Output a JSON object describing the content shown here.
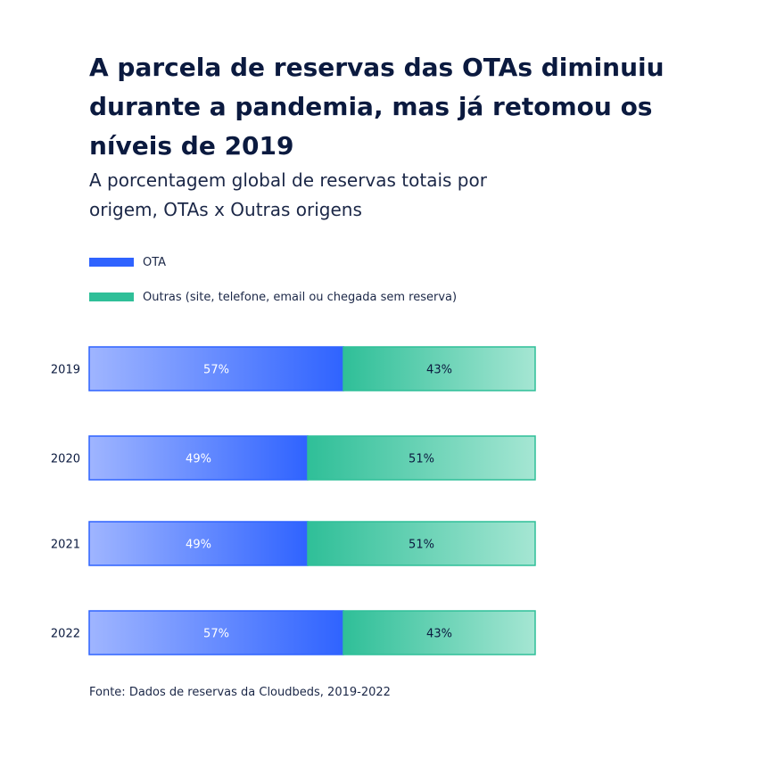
{
  "title": "A parcela de reservas das OTAs diminuiu durante a pandemia, mas já retomou os níveis de 2019",
  "subtitle": "A porcentagem global de reservas totais por origem,  OTAs x Outras origens",
  "source": "Fonte: Dados de reservas da Cloudbeds, 2019-2022",
  "colors": {
    "ota_light": "#9fb5ff",
    "ota_dark": "#2f63ff",
    "outras_dark": "#2fbf98",
    "outras_light": "#a5e6d3",
    "text_dark": "#0b1a3f"
  },
  "chart_data": {
    "type": "bar",
    "orientation": "horizontal",
    "stacked": true,
    "categories": [
      "2019",
      "2020",
      "2021",
      "2022"
    ],
    "series": [
      {
        "name": "OTA",
        "values": [
          57,
          49,
          49,
          57
        ],
        "labels": [
          "57%",
          "49%",
          "49%",
          "57%"
        ]
      },
      {
        "name": "Outras (site, telefone, email ou chegada sem reserva)",
        "values": [
          43,
          51,
          51,
          43
        ],
        "labels": [
          "43%",
          "51%",
          "51%",
          "43%"
        ]
      }
    ],
    "xlim": [
      0,
      100
    ],
    "legend": "top-left",
    "grid": false
  }
}
